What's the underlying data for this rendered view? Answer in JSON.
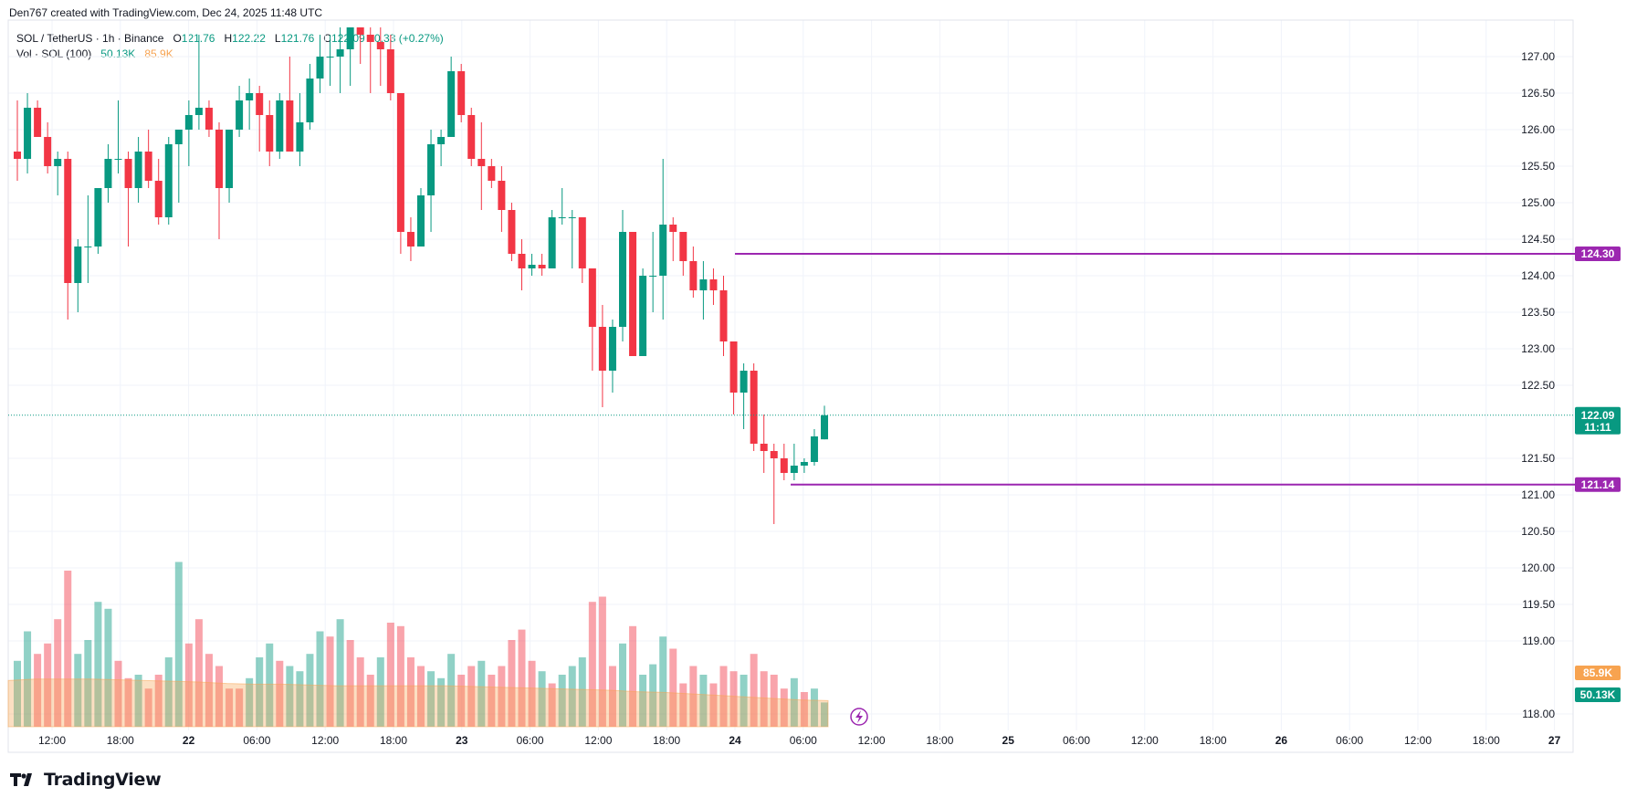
{
  "header": {
    "credit": "Den767 created with TradingView.com, Dec 24, 2025 11:48 UTC"
  },
  "legend": {
    "symbol": "SOL / TetherUS · 1h · Binance",
    "open_label": "O",
    "open": "121.76",
    "high_label": "H",
    "high": "122.22",
    "low_label": "L",
    "low": "121.76",
    "close_label": "C",
    "close": "122.09",
    "change": "+0.33 (+0.27%)",
    "volume_label": "Vol · SOL (100)",
    "volume": "50.13K",
    "volume_ma": "85.9K"
  },
  "brand": {
    "name": "TradingView"
  },
  "colors": {
    "up": "#089981",
    "down": "#f23645",
    "level": "#9c27b0",
    "vol_ma": "#f7a350"
  },
  "chart_data": {
    "type": "candlestick",
    "price_ticks": [
      "127.00",
      "126.50",
      "126.00",
      "125.50",
      "125.00",
      "124.50",
      "124.00",
      "123.50",
      "123.00",
      "122.50",
      "121.50",
      "121.00",
      "120.50",
      "120.00",
      "119.50",
      "119.00",
      "118.00"
    ],
    "ylim": [
      117.8,
      127.4
    ],
    "time_ticks": [
      "12:00",
      "18:00",
      "22",
      "06:00",
      "12:00",
      "18:00",
      "23",
      "06:00",
      "12:00",
      "18:00",
      "24",
      "06:00",
      "12:00",
      "18:00",
      "25",
      "06:00",
      "12:00",
      "18:00",
      "26",
      "06:00",
      "12:00",
      "18:00",
      "27"
    ],
    "levels": [
      {
        "value": "124.30",
        "price": 124.3
      },
      {
        "value": "121.14",
        "price": 121.14
      }
    ],
    "last_price": {
      "value": "122.09",
      "countdown": "11:11",
      "price": 122.09
    },
    "volume_tags": {
      "ma": "85.9K",
      "volume": "50.13K"
    },
    "candles": [
      {
        "o": 125.7,
        "h": 126.4,
        "l": 125.3,
        "c": 125.6
      },
      {
        "o": 125.6,
        "h": 126.5,
        "l": 125.4,
        "c": 126.3
      },
      {
        "o": 126.3,
        "h": 126.4,
        "l": 125.9,
        "c": 125.9
      },
      {
        "o": 125.9,
        "h": 126.1,
        "l": 125.4,
        "c": 125.5
      },
      {
        "o": 125.5,
        "h": 125.7,
        "l": 125.1,
        "c": 125.6
      },
      {
        "o": 125.6,
        "h": 125.7,
        "l": 123.4,
        "c": 123.9
      },
      {
        "o": 123.9,
        "h": 124.5,
        "l": 123.5,
        "c": 124.4
      },
      {
        "o": 124.4,
        "h": 125.1,
        "l": 123.9,
        "c": 124.4
      },
      {
        "o": 124.4,
        "h": 125.2,
        "l": 124.3,
        "c": 125.2
      },
      {
        "o": 125.2,
        "h": 125.8,
        "l": 125.0,
        "c": 125.6
      },
      {
        "o": 125.6,
        "h": 126.4,
        "l": 125.4,
        "c": 125.6
      },
      {
        "o": 125.6,
        "h": 125.7,
        "l": 124.4,
        "c": 125.2
      },
      {
        "o": 125.2,
        "h": 125.9,
        "l": 125.0,
        "c": 125.7
      },
      {
        "o": 125.7,
        "h": 126.0,
        "l": 125.2,
        "c": 125.3
      },
      {
        "o": 125.3,
        "h": 125.6,
        "l": 124.7,
        "c": 124.8
      },
      {
        "o": 124.8,
        "h": 125.9,
        "l": 124.7,
        "c": 125.8
      },
      {
        "o": 125.8,
        "h": 126.0,
        "l": 125.0,
        "c": 126.0
      },
      {
        "o": 126.0,
        "h": 126.4,
        "l": 125.5,
        "c": 126.2
      },
      {
        "o": 126.2,
        "h": 127.3,
        "l": 126.0,
        "c": 126.3
      },
      {
        "o": 126.3,
        "h": 126.4,
        "l": 125.9,
        "c": 126.0
      },
      {
        "o": 126.0,
        "h": 126.1,
        "l": 124.5,
        "c": 125.2
      },
      {
        "o": 125.2,
        "h": 126.0,
        "l": 125.0,
        "c": 126.0
      },
      {
        "o": 126.0,
        "h": 126.6,
        "l": 125.9,
        "c": 126.4
      },
      {
        "o": 126.4,
        "h": 126.7,
        "l": 126.0,
        "c": 126.5
      },
      {
        "o": 126.5,
        "h": 126.6,
        "l": 125.7,
        "c": 126.2
      },
      {
        "o": 126.2,
        "h": 126.4,
        "l": 125.5,
        "c": 125.7
      },
      {
        "o": 125.7,
        "h": 126.5,
        "l": 125.6,
        "c": 126.4
      },
      {
        "o": 126.4,
        "h": 127.0,
        "l": 125.7,
        "c": 125.7
      },
      {
        "o": 125.7,
        "h": 126.5,
        "l": 125.5,
        "c": 126.1
      },
      {
        "o": 126.1,
        "h": 126.9,
        "l": 126.0,
        "c": 126.7
      },
      {
        "o": 126.7,
        "h": 127.3,
        "l": 126.5,
        "c": 127.0
      },
      {
        "o": 127.0,
        "h": 127.3,
        "l": 126.6,
        "c": 127.0
      },
      {
        "o": 127.0,
        "h": 127.4,
        "l": 126.5,
        "c": 127.1
      },
      {
        "o": 127.1,
        "h": 127.4,
        "l": 126.6,
        "c": 127.4
      },
      {
        "o": 127.4,
        "h": 127.4,
        "l": 126.9,
        "c": 127.3
      },
      {
        "o": 127.3,
        "h": 127.4,
        "l": 126.5,
        "c": 127.2
      },
      {
        "o": 127.2,
        "h": 127.4,
        "l": 126.6,
        "c": 127.1
      },
      {
        "o": 127.1,
        "h": 127.3,
        "l": 126.4,
        "c": 126.5
      },
      {
        "o": 126.5,
        "h": 126.5,
        "l": 124.3,
        "c": 124.6
      },
      {
        "o": 124.6,
        "h": 124.8,
        "l": 124.2,
        "c": 124.4
      },
      {
        "o": 124.4,
        "h": 125.2,
        "l": 124.4,
        "c": 125.1
      },
      {
        "o": 125.1,
        "h": 126.0,
        "l": 124.6,
        "c": 125.8
      },
      {
        "o": 125.8,
        "h": 126.0,
        "l": 125.5,
        "c": 125.9
      },
      {
        "o": 125.9,
        "h": 127.0,
        "l": 125.9,
        "c": 126.8
      },
      {
        "o": 126.8,
        "h": 126.9,
        "l": 126.1,
        "c": 126.2
      },
      {
        "o": 126.2,
        "h": 126.3,
        "l": 125.5,
        "c": 125.6
      },
      {
        "o": 125.6,
        "h": 126.1,
        "l": 124.9,
        "c": 125.5
      },
      {
        "o": 125.5,
        "h": 125.6,
        "l": 125.2,
        "c": 125.3
      },
      {
        "o": 125.3,
        "h": 125.5,
        "l": 124.6,
        "c": 124.9
      },
      {
        "o": 124.9,
        "h": 125.0,
        "l": 124.2,
        "c": 124.3
      },
      {
        "o": 124.3,
        "h": 124.5,
        "l": 123.8,
        "c": 124.1
      },
      {
        "o": 124.1,
        "h": 124.3,
        "l": 124.0,
        "c": 124.15
      },
      {
        "o": 124.15,
        "h": 124.3,
        "l": 124.0,
        "c": 124.1
      },
      {
        "o": 124.1,
        "h": 124.9,
        "l": 124.1,
        "c": 124.8
      },
      {
        "o": 124.8,
        "h": 125.2,
        "l": 124.7,
        "c": 124.8
      },
      {
        "o": 124.8,
        "h": 124.9,
        "l": 124.1,
        "c": 124.8
      },
      {
        "o": 124.8,
        "h": 124.8,
        "l": 123.9,
        "c": 124.1
      },
      {
        "o": 124.1,
        "h": 124.1,
        "l": 122.7,
        "c": 123.3
      },
      {
        "o": 123.3,
        "h": 123.6,
        "l": 122.2,
        "c": 122.7
      },
      {
        "o": 122.7,
        "h": 123.4,
        "l": 122.4,
        "c": 123.3
      },
      {
        "o": 123.3,
        "h": 124.9,
        "l": 123.1,
        "c": 124.6
      },
      {
        "o": 124.6,
        "h": 124.6,
        "l": 122.9,
        "c": 122.9
      },
      {
        "o": 122.9,
        "h": 124.1,
        "l": 122.9,
        "c": 124.0
      },
      {
        "o": 124.0,
        "h": 124.6,
        "l": 123.5,
        "c": 124.0
      },
      {
        "o": 124.0,
        "h": 125.6,
        "l": 123.4,
        "c": 124.7
      },
      {
        "o": 124.7,
        "h": 124.8,
        "l": 124.2,
        "c": 124.6
      },
      {
        "o": 124.6,
        "h": 124.6,
        "l": 124.0,
        "c": 124.2
      },
      {
        "o": 124.2,
        "h": 124.4,
        "l": 123.7,
        "c": 123.8
      },
      {
        "o": 123.8,
        "h": 124.2,
        "l": 123.4,
        "c": 123.95
      },
      {
        "o": 123.95,
        "h": 124.1,
        "l": 123.6,
        "c": 123.8
      },
      {
        "o": 123.8,
        "h": 124.0,
        "l": 122.9,
        "c": 123.1
      },
      {
        "o": 123.1,
        "h": 123.1,
        "l": 122.1,
        "c": 122.4
      },
      {
        "o": 122.4,
        "h": 122.8,
        "l": 121.9,
        "c": 122.7
      },
      {
        "o": 122.7,
        "h": 122.8,
        "l": 121.6,
        "c": 121.7
      },
      {
        "o": 121.7,
        "h": 122.1,
        "l": 121.3,
        "c": 121.6
      },
      {
        "o": 121.6,
        "h": 121.7,
        "l": 120.6,
        "c": 121.5
      },
      {
        "o": 121.5,
        "h": 121.7,
        "l": 121.2,
        "c": 121.3
      },
      {
        "o": 121.3,
        "h": 121.7,
        "l": 121.2,
        "c": 121.4
      },
      {
        "o": 121.4,
        "h": 121.5,
        "l": 121.3,
        "c": 121.45
      },
      {
        "o": 121.45,
        "h": 121.9,
        "l": 121.4,
        "c": 121.8
      },
      {
        "o": 121.76,
        "h": 122.22,
        "l": 121.76,
        "c": 122.09
      }
    ],
    "volumes": [
      {
        "v": 0.38,
        "up": true
      },
      {
        "v": 0.55,
        "up": true
      },
      {
        "v": 0.42,
        "up": false
      },
      {
        "v": 0.48,
        "up": false
      },
      {
        "v": 0.62,
        "up": false
      },
      {
        "v": 0.9,
        "up": false
      },
      {
        "v": 0.42,
        "up": true
      },
      {
        "v": 0.5,
        "up": true
      },
      {
        "v": 0.72,
        "up": true
      },
      {
        "v": 0.68,
        "up": true
      },
      {
        "v": 0.38,
        "up": false
      },
      {
        "v": 0.28,
        "up": false
      },
      {
        "v": 0.3,
        "up": true
      },
      {
        "v": 0.22,
        "up": false
      },
      {
        "v": 0.3,
        "up": false
      },
      {
        "v": 0.4,
        "up": true
      },
      {
        "v": 0.95,
        "up": true
      },
      {
        "v": 0.48,
        "up": false
      },
      {
        "v": 0.62,
        "up": false
      },
      {
        "v": 0.42,
        "up": false
      },
      {
        "v": 0.35,
        "up": false
      },
      {
        "v": 0.22,
        "up": false
      },
      {
        "v": 0.22,
        "up": false
      },
      {
        "v": 0.28,
        "up": true
      },
      {
        "v": 0.4,
        "up": true
      },
      {
        "v": 0.48,
        "up": true
      },
      {
        "v": 0.38,
        "up": false
      },
      {
        "v": 0.35,
        "up": true
      },
      {
        "v": 0.32,
        "up": true
      },
      {
        "v": 0.42,
        "up": true
      },
      {
        "v": 0.55,
        "up": true
      },
      {
        "v": 0.52,
        "up": false
      },
      {
        "v": 0.62,
        "up": true
      },
      {
        "v": 0.5,
        "up": false
      },
      {
        "v": 0.4,
        "up": false
      },
      {
        "v": 0.3,
        "up": false
      },
      {
        "v": 0.4,
        "up": true
      },
      {
        "v": 0.6,
        "up": false
      },
      {
        "v": 0.58,
        "up": false
      },
      {
        "v": 0.4,
        "up": false
      },
      {
        "v": 0.35,
        "up": false
      },
      {
        "v": 0.32,
        "up": true
      },
      {
        "v": 0.28,
        "up": true
      },
      {
        "v": 0.42,
        "up": true
      },
      {
        "v": 0.3,
        "up": false
      },
      {
        "v": 0.35,
        "up": false
      },
      {
        "v": 0.38,
        "up": true
      },
      {
        "v": 0.3,
        "up": false
      },
      {
        "v": 0.35,
        "up": false
      },
      {
        "v": 0.5,
        "up": false
      },
      {
        "v": 0.56,
        "up": false
      },
      {
        "v": 0.38,
        "up": false
      },
      {
        "v": 0.32,
        "up": true
      },
      {
        "v": 0.25,
        "up": false
      },
      {
        "v": 0.3,
        "up": true
      },
      {
        "v": 0.35,
        "up": true
      },
      {
        "v": 0.4,
        "up": true
      },
      {
        "v": 0.72,
        "up": false
      },
      {
        "v": 0.75,
        "up": false
      },
      {
        "v": 0.35,
        "up": false
      },
      {
        "v": 0.48,
        "up": true
      },
      {
        "v": 0.58,
        "up": false
      },
      {
        "v": 0.3,
        "up": true
      },
      {
        "v": 0.36,
        "up": true
      },
      {
        "v": 0.52,
        "up": true
      },
      {
        "v": 0.45,
        "up": false
      },
      {
        "v": 0.25,
        "up": false
      },
      {
        "v": 0.35,
        "up": false
      },
      {
        "v": 0.3,
        "up": true
      },
      {
        "v": 0.25,
        "up": false
      },
      {
        "v": 0.35,
        "up": false
      },
      {
        "v": 0.32,
        "up": false
      },
      {
        "v": 0.3,
        "up": true
      },
      {
        "v": 0.42,
        "up": false
      },
      {
        "v": 0.32,
        "up": false
      },
      {
        "v": 0.3,
        "up": false
      },
      {
        "v": 0.22,
        "up": false
      },
      {
        "v": 0.28,
        "up": true
      },
      {
        "v": 0.2,
        "up": false
      },
      {
        "v": 0.22,
        "up": true
      },
      {
        "v": 0.14,
        "up": true
      }
    ],
    "volume_ma_values": [
      0.62,
      0.64,
      0.64,
      0.64,
      0.63,
      0.62,
      0.61,
      0.6,
      0.58,
      0.57,
      0.57,
      0.56,
      0.55,
      0.55,
      0.55,
      0.55,
      0.55,
      0.54,
      0.53,
      0.52,
      0.51,
      0.5,
      0.49,
      0.47,
      0.46,
      0.44,
      0.42,
      0.4,
      0.38,
      0.36,
      0.35
    ]
  }
}
